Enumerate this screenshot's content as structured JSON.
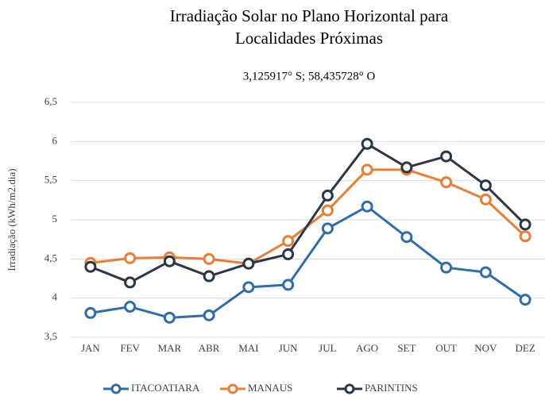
{
  "chart_data": {
    "type": "line",
    "title": [
      "Irradiação Solar no Plano Horizontal para",
      "Localidades Próximas"
    ],
    "subtitle": "3,125917° S; 58,435728° O",
    "y_label": "Irradiação (kWh/m2.dia)",
    "categories": [
      "JAN",
      "FEV",
      "MAR",
      "ABR",
      "MAI",
      "JUN",
      "JUL",
      "AGO",
      "SET",
      "OUT",
      "NOV",
      "DEZ"
    ],
    "series": [
      {
        "name": "ITACOATIARA",
        "color": "#2e6eab",
        "values": [
          3.81,
          3.89,
          3.75,
          3.78,
          4.14,
          4.17,
          4.89,
          5.17,
          4.78,
          4.39,
          4.33,
          3.98
        ]
      },
      {
        "name": "MANAUS",
        "color": "#ed7d31",
        "values": [
          4.45,
          4.51,
          4.52,
          4.5,
          4.44,
          4.73,
          5.12,
          5.64,
          5.64,
          5.48,
          5.26,
          4.79
        ]
      },
      {
        "name": "PARINTINS",
        "color": "#2b3849",
        "values": [
          4.4,
          4.2,
          4.47,
          4.28,
          4.44,
          4.56,
          5.31,
          5.97,
          5.67,
          5.81,
          5.44,
          4.94
        ]
      }
    ],
    "ylim": [
      3.5,
      6.5
    ],
    "yticks": [
      {
        "value": 3.5,
        "label": "3,5"
      },
      4,
      {
        "value": 4.5,
        "label": "4,5"
      },
      5,
      {
        "value": 5.5,
        "label": "5,5"
      },
      6,
      {
        "value": 6.5,
        "label": "6,5"
      }
    ],
    "grid": true,
    "legend": "bottom"
  }
}
